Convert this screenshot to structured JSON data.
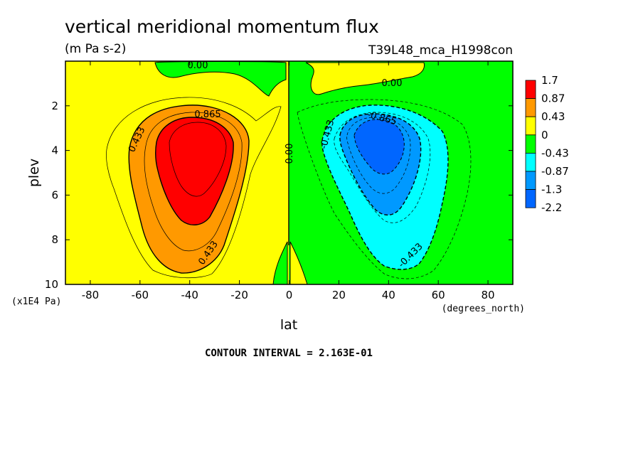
{
  "chart_data": {
    "type": "contour",
    "title": "vertical meridional momentum flux",
    "units": "(m Pa s-2)",
    "dataset": "T39L48_mca_H1998con",
    "xlabel": "lat",
    "xunits": "(degrees_north)",
    "ylabel": "plev",
    "yunits": "(x1E4 Pa)",
    "xlim": [
      -90,
      90
    ],
    "ylim": [
      10,
      0
    ],
    "xticks": [
      -80,
      -60,
      -40,
      -20,
      0,
      20,
      40,
      60,
      80
    ],
    "yticks": [
      2,
      4,
      6,
      8,
      10
    ],
    "contour_interval": 0.2163,
    "contour_interval_text": "CONTOUR INTERVAL = 2.163E-01",
    "contour_labels": [
      "0.00",
      "0.00",
      "0.00",
      "0.433",
      "0.865",
      "0.433",
      "-0.433",
      "-0.865",
      "-0.433"
    ],
    "legend": {
      "levels": [
        "1.7",
        "0.87",
        "0.43",
        "0",
        "-0.43",
        "-0.87",
        "-1.3",
        "-2.2"
      ],
      "colors": [
        "#ff0000",
        "#ff9900",
        "#ffff00",
        "#00ff00",
        "#00ffff",
        "#0099ff",
        "#0066ff"
      ]
    },
    "features": [
      {
        "name": "positive-max",
        "lat": -35,
        "plev": 4.0,
        "value": 1.5
      },
      {
        "name": "negative-min",
        "lat": 35,
        "plev": 4.0,
        "value": -1.4
      }
    ]
  }
}
